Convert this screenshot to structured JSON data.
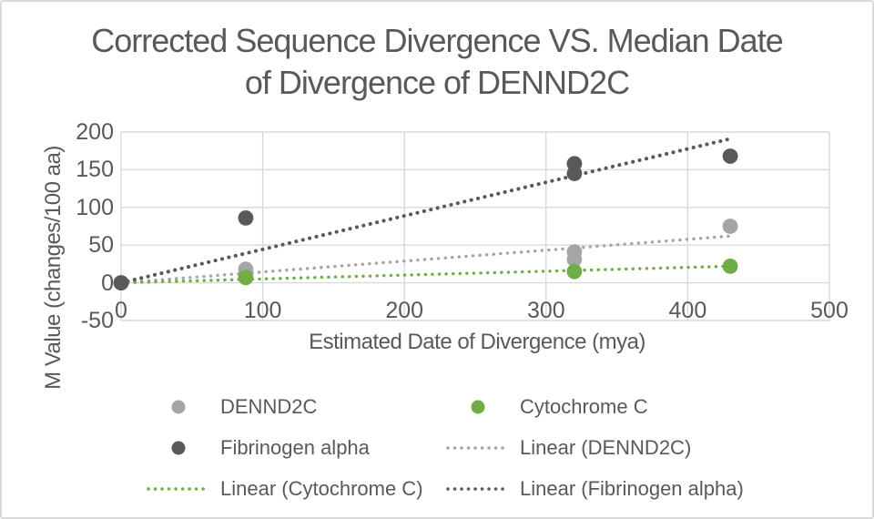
{
  "window": {
    "background": "#ffffff",
    "border_color": "#d9d9d9"
  },
  "header": {
    "title_line1": "Corrected Sequence Divergence VS. Median Date",
    "title_line2": "of Divergence of DENND2C",
    "text_color": "#595959"
  },
  "chart_data": {
    "type": "scatter",
    "title": "Corrected Sequence Divergence VS. Median Date of Divergence of DENND2C",
    "xlabel": "Estimated Date of Divergence (mya)",
    "ylabel": "M Value (changes/100 aa)",
    "xlim": [
      0,
      500
    ],
    "ylim": [
      -50,
      200
    ],
    "xticks": [
      0,
      100,
      200,
      300,
      400,
      500
    ],
    "yticks": [
      200,
      150,
      100,
      50,
      0,
      -50
    ],
    "grid": true,
    "gridline_color": "#d9d9d9",
    "axis_text_color": "#595959",
    "legend_position": "bottom",
    "series": [
      {
        "name": "DENND2C",
        "color": "#a5a5a5",
        "marker": "circle",
        "points": [
          [
            0,
            0
          ],
          [
            88,
            18
          ],
          [
            320,
            31
          ],
          [
            320,
            41
          ],
          [
            430,
            75
          ]
        ]
      },
      {
        "name": "Cytochrome C",
        "color": "#70ad47",
        "marker": "circle",
        "points": [
          [
            0,
            0
          ],
          [
            88,
            7
          ],
          [
            320,
            15
          ],
          [
            430,
            22
          ]
        ]
      },
      {
        "name": "Fibrinogen alpha",
        "color": "#595959",
        "marker": "circle",
        "points": [
          [
            0,
            0
          ],
          [
            88,
            86
          ],
          [
            320,
            145
          ],
          [
            320,
            158
          ],
          [
            430,
            168
          ]
        ]
      }
    ],
    "trendlines": [
      {
        "name": "Linear (DENND2C)",
        "color": "#a5a5a5",
        "style": "dotted",
        "x": [
          0,
          430
        ],
        "y": [
          0,
          62
        ]
      },
      {
        "name": "Linear (Cytochrome C)",
        "color": "#70ad47",
        "style": "dotted",
        "x": [
          0,
          430
        ],
        "y": [
          0,
          22
        ]
      },
      {
        "name": "Linear (Fibrinogen alpha)",
        "color": "#595959",
        "style": "dotted",
        "x": [
          0,
          430
        ],
        "y": [
          0,
          191
        ]
      }
    ],
    "legend": {
      "entries": [
        {
          "label": "DENND2C",
          "marker": "circle",
          "color": "#a5a5a5"
        },
        {
          "label": "Cytochrome C",
          "marker": "circle",
          "color": "#70ad47"
        },
        {
          "label": "Fibrinogen alpha",
          "marker": "circle",
          "color": "#595959"
        },
        {
          "label": "Linear (DENND2C)",
          "marker": "dotted-line",
          "color": "#a5a5a5"
        },
        {
          "label": "Linear (Cytochrome C)",
          "marker": "dotted-line",
          "color": "#70ad47"
        },
        {
          "label": "Linear (Fibrinogen alpha)",
          "marker": "dotted-line",
          "color": "#595959"
        }
      ]
    }
  }
}
